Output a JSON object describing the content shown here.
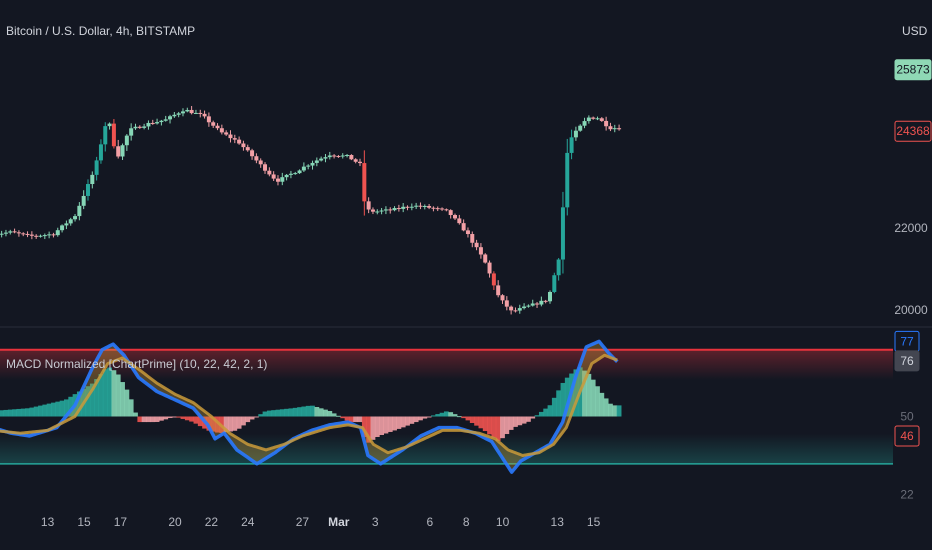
{
  "header": {
    "symbol_title": "Bitcoin / U.S. Dollar, 4h, BITSTAMP",
    "currency": "USD"
  },
  "indicator": {
    "title": "MACD Normalized [ChartPrime] (10, 22, 42, 2, 1)"
  },
  "colors": {
    "background": "#131722",
    "bull": "#26a69a",
    "bull_light": "#86d6b6",
    "bear": "#ef5350",
    "bear_light": "#f2a0a6",
    "macd_line": "#2979ff",
    "signal_line": "#c99a3a",
    "upper_band": "#e8323c",
    "lower_band": "#26a69a"
  },
  "chart_data": [
    {
      "type": "candlestick",
      "title": "Bitcoin / U.S. Dollar, 4h, BITSTAMP",
      "currency": "USD",
      "y_ticks": [
        20000,
        22000
      ],
      "price_badges": [
        {
          "label": "25873",
          "value": 25873,
          "tone": "bull"
        },
        {
          "label": "24368",
          "value": 24368,
          "tone": "bear"
        }
      ],
      "x_ticks": [
        "13",
        "15",
        "17",
        "20",
        "22",
        "24",
        "27",
        "Mar",
        "3",
        "6",
        "8",
        "10",
        "13",
        "15"
      ],
      "x_tick_positions": [
        13,
        15,
        17,
        20,
        22,
        24,
        27,
        29,
        31,
        34,
        36,
        38,
        41,
        43
      ],
      "ylim": [
        19800,
        26600
      ],
      "close_path": [
        [
          10,
          21850
        ],
        [
          11,
          21900
        ],
        [
          12,
          21800
        ],
        [
          13.3,
          21850
        ],
        [
          14.5,
          22300
        ],
        [
          15.6,
          23450
        ],
        [
          16.3,
          24750
        ],
        [
          16.8,
          23700
        ],
        [
          17.5,
          24400
        ],
        [
          18.5,
          24550
        ],
        [
          19.5,
          24650
        ],
        [
          20.5,
          24900
        ],
        [
          21.5,
          24750
        ],
        [
          22.5,
          24350
        ],
        [
          23.5,
          24100
        ],
        [
          24.8,
          23500
        ],
        [
          25.6,
          23150
        ],
        [
          26.5,
          23350
        ],
        [
          27.5,
          23600
        ],
        [
          28.5,
          23800
        ],
        [
          29.5,
          23750
        ],
        [
          30.2,
          23550
        ],
        [
          30.45,
          22450
        ],
        [
          31,
          22400
        ],
        [
          32,
          22450
        ],
        [
          33,
          22550
        ],
        [
          34,
          22500
        ],
        [
          35,
          22400
        ],
        [
          36,
          21900
        ],
        [
          37,
          21200
        ],
        [
          37.8,
          20300
        ],
        [
          38.5,
          19950
        ],
        [
          39.5,
          20100
        ],
        [
          40.5,
          20250
        ],
        [
          41.1,
          21300
        ],
        [
          41.6,
          24100
        ],
        [
          42.2,
          24450
        ],
        [
          42.7,
          24700
        ],
        [
          43.2,
          24700
        ],
        [
          43.9,
          24450
        ]
      ]
    },
    {
      "type": "oscillator",
      "title": "MACD Normalized [ChartPrime] (10, 22, 42, 2, 1)",
      "parameters": [
        10,
        22,
        42,
        2,
        1
      ],
      "ylim": [
        20,
        80
      ],
      "upper_level": 74,
      "lower_level": 33,
      "midline": 50,
      "axis_badges": [
        {
          "label": "77",
          "value": 77,
          "tone": "blue"
        },
        {
          "label": "76",
          "value": 70,
          "tone": "gray"
        },
        {
          "label": "50",
          "value": 50,
          "tone": "plain"
        },
        {
          "label": "46",
          "value": 43,
          "tone": "red"
        },
        {
          "label": "22",
          "value": 22,
          "tone": "plain"
        }
      ],
      "series": [
        {
          "type": "histogram",
          "values_path": [
            [
              10,
              52
            ],
            [
              12,
              53
            ],
            [
              14,
              56
            ],
            [
              15.5,
              62
            ],
            [
              16.3,
              68
            ],
            [
              16.8,
              66
            ],
            [
              17.5,
              58
            ],
            [
              18,
              48
            ],
            [
              19,
              48
            ],
            [
              20,
              50
            ],
            [
              21,
              48
            ],
            [
              21.8,
              45
            ],
            [
              22.5,
              44
            ],
            [
              23.4,
              45
            ],
            [
              24,
              48
            ],
            [
              25,
              52
            ],
            [
              26.5,
              53
            ],
            [
              27.5,
              54
            ],
            [
              28.5,
              52
            ],
            [
              29.6,
              48
            ],
            [
              30.2,
              48
            ],
            [
              30.5,
              40
            ],
            [
              31.2,
              43
            ],
            [
              32.5,
              46
            ],
            [
              34,
              50
            ],
            [
              35,
              52
            ],
            [
              36,
              49
            ],
            [
              37,
              45
            ],
            [
              37.8,
              41
            ],
            [
              38.6,
              46
            ],
            [
              39.4,
              48
            ],
            [
              40,
              51
            ],
            [
              40.6,
              54
            ],
            [
              41.4,
              63
            ],
            [
              42.2,
              68
            ],
            [
              42.8,
              65
            ],
            [
              43.5,
              58
            ],
            [
              44,
              54
            ]
          ]
        },
        {
          "type": "line",
          "name_role": "macd",
          "values_path": [
            [
              10,
              46
            ],
            [
              11,
              44
            ],
            [
              12,
              43
            ],
            [
              13.5,
              46
            ],
            [
              14.5,
              54
            ],
            [
              15.5,
              68
            ],
            [
              16,
              74
            ],
            [
              16.6,
              76
            ],
            [
              17.2,
              72
            ],
            [
              18,
              64
            ],
            [
              19,
              59
            ],
            [
              20,
              56
            ],
            [
              21,
              53
            ],
            [
              21.8,
              47
            ],
            [
              22.2,
              42
            ],
            [
              22.7,
              44
            ],
            [
              23.4,
              38
            ],
            [
              24.5,
              33
            ],
            [
              25.5,
              37
            ],
            [
              26.5,
              42
            ],
            [
              27.5,
              45
            ],
            [
              28.5,
              47
            ],
            [
              29.5,
              48
            ],
            [
              30.2,
              46
            ],
            [
              30.6,
              36
            ],
            [
              31.3,
              33
            ],
            [
              32.5,
              38
            ],
            [
              33.5,
              43
            ],
            [
              34.5,
              46
            ],
            [
              35.5,
              46
            ],
            [
              36.5,
              44
            ],
            [
              37.4,
              41
            ],
            [
              38.1,
              34
            ],
            [
              38.5,
              30
            ],
            [
              39,
              34
            ],
            [
              39.8,
              37
            ],
            [
              40.6,
              40
            ],
            [
              41.3,
              48
            ],
            [
              42,
              64
            ],
            [
              42.6,
              75
            ],
            [
              43.3,
              77
            ],
            [
              43.8,
              73
            ],
            [
              44.4,
              69
            ]
          ]
        },
        {
          "type": "line",
          "name_role": "signal",
          "values_path": [
            [
              10,
              45
            ],
            [
              11.5,
              44
            ],
            [
              13,
              45
            ],
            [
              14.5,
              50
            ],
            [
              15.5,
              60
            ],
            [
              16.3,
              69
            ],
            [
              17.1,
              71
            ],
            [
              18,
              67
            ],
            [
              19,
              62
            ],
            [
              20,
              58
            ],
            [
              21,
              55
            ],
            [
              22,
              50
            ],
            [
              23,
              44
            ],
            [
              24,
              40
            ],
            [
              25,
              38
            ],
            [
              26,
              40
            ],
            [
              27,
              43
            ],
            [
              28.5,
              46
            ],
            [
              29.5,
              47
            ],
            [
              30.3,
              46
            ],
            [
              30.9,
              40
            ],
            [
              31.7,
              37
            ],
            [
              32.7,
              39
            ],
            [
              33.7,
              42
            ],
            [
              34.7,
              45
            ],
            [
              35.7,
              45
            ],
            [
              36.7,
              44
            ],
            [
              37.6,
              42
            ],
            [
              38.3,
              38
            ],
            [
              39.1,
              36
            ],
            [
              40,
              37
            ],
            [
              40.8,
              40
            ],
            [
              41.5,
              46
            ],
            [
              42.2,
              58
            ],
            [
              42.9,
              69
            ],
            [
              43.6,
              72
            ],
            [
              44.4,
              70
            ]
          ]
        }
      ]
    }
  ]
}
